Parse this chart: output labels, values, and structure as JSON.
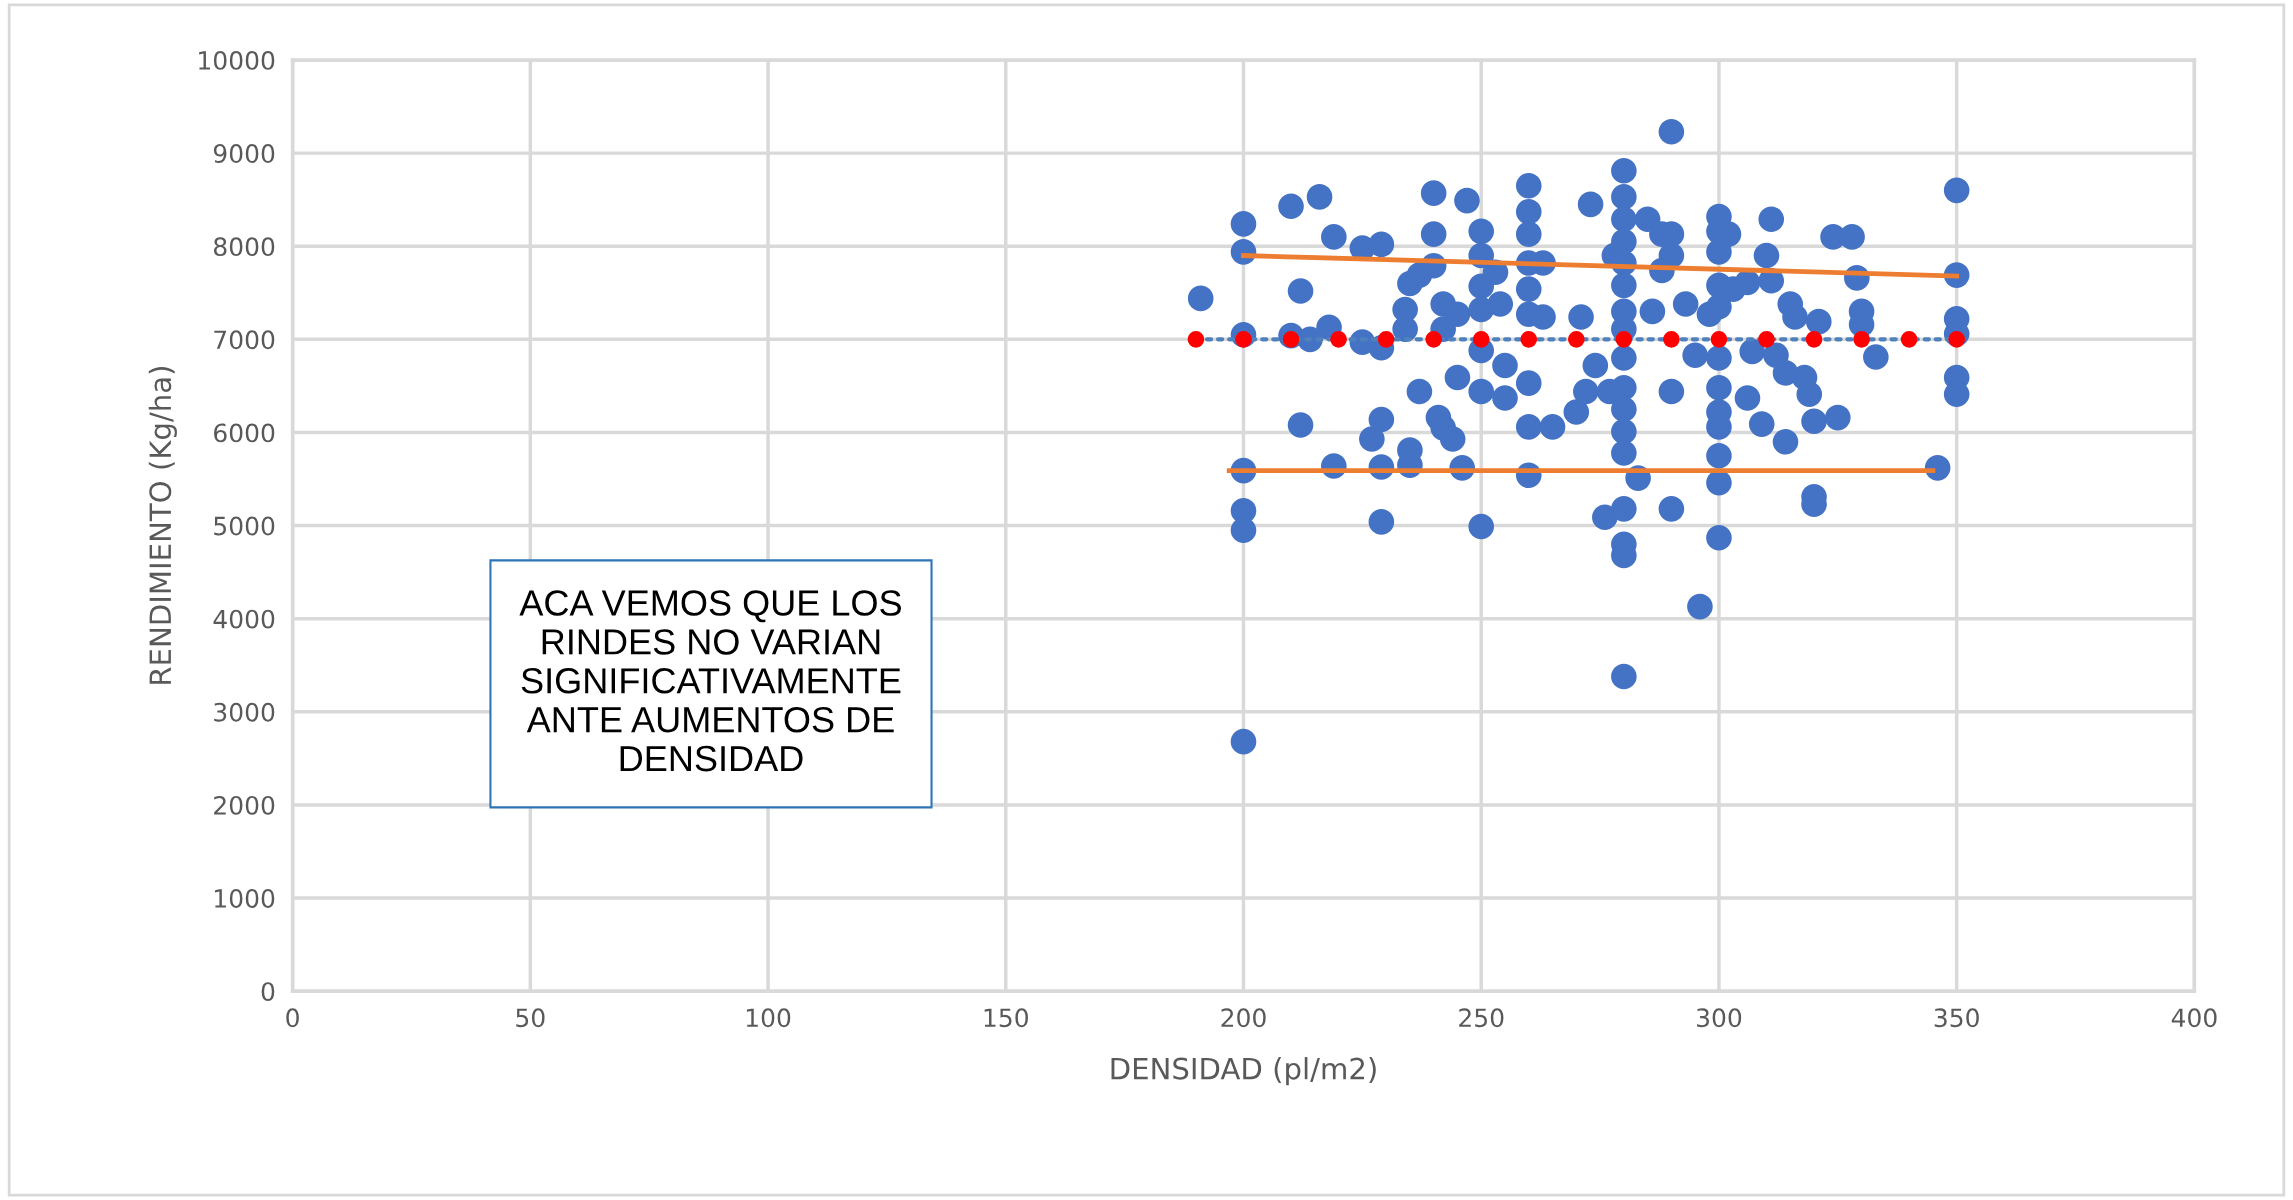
{
  "chart_data": {
    "type": "scatter",
    "xlabel": "DENSIDAD (pl/m2)",
    "ylabel": "RENDIMIENTO (Kg/ha)",
    "annotations": [
      "ACA VEMOS QUE LOS\nRINDES NO VARIAN\nSIGNIFICATIVAMENTE\nANTE AUMENTOS DE\nDENSIDAD"
    ],
    "xlim": [
      0,
      400
    ],
    "xticks": [
      0,
      50,
      100,
      150,
      200,
      250,
      300,
      350,
      400
    ],
    "ylim": [
      0,
      10000
    ],
    "yticks": [
      0,
      1000,
      2000,
      3000,
      4000,
      5000,
      6000,
      7000,
      8000,
      9000,
      10000
    ],
    "grid": true,
    "legend": false,
    "series": [
      {
        "color": "#4472c4",
        "marker": "circle",
        "x": [
          191,
          200,
          200,
          200,
          200,
          200,
          200,
          200,
          210,
          210,
          212,
          212,
          216,
          214,
          219,
          218,
          219,
          225,
          229,
          225,
          229,
          229,
          227,
          229,
          229,
          234,
          234,
          235,
          237,
          237,
          235,
          235,
          240,
          240,
          240,
          242,
          242,
          241,
          242,
          244,
          245,
          245,
          247,
          246,
          250,
          250,
          250,
          250,
          250,
          250,
          250,
          253,
          254,
          255,
          255,
          260,
          260,
          260,
          260,
          260,
          260,
          260,
          260,
          260,
          263,
          263,
          265,
          270,
          271,
          272,
          273,
          274,
          276,
          277,
          278,
          280,
          280,
          280,
          280,
          280,
          280,
          280,
          280,
          280,
          280,
          280,
          280,
          280,
          280,
          280,
          280,
          280,
          283,
          285,
          288,
          286,
          288,
          290,
          290,
          290,
          290,
          290,
          293,
          296,
          295,
          298,
          300,
          300,
          300,
          300,
          300,
          300,
          300,
          300,
          300,
          300,
          300,
          300,
          302,
          303,
          306,
          306,
          307,
          309,
          310,
          311,
          311,
          312,
          314,
          314,
          315,
          316,
          318,
          319,
          320,
          320,
          320,
          321,
          324,
          325,
          328,
          329,
          330,
          330,
          333,
          346,
          350,
          350,
          350,
          350,
          350,
          350
        ],
        "values": [
          7440,
          8240,
          7940,
          7050,
          5590,
          5160,
          4950,
          2680,
          8430,
          7040,
          7520,
          6080,
          8530,
          7000,
          8100,
          7130,
          5640,
          7980,
          8020,
          6970,
          6910,
          6140,
          5930,
          5630,
          5040,
          7320,
          7110,
          7600,
          7690,
          6440,
          5810,
          5650,
          8570,
          8130,
          7790,
          7380,
          7110,
          6160,
          6050,
          5930,
          6590,
          7270,
          8490,
          5620,
          8160,
          7900,
          7570,
          7320,
          6880,
          6440,
          4990,
          7720,
          7380,
          6370,
          6720,
          8650,
          8370,
          8130,
          7820,
          7540,
          7270,
          6530,
          6060,
          5540,
          7820,
          7240,
          6060,
          6220,
          7240,
          6440,
          8450,
          6720,
          5090,
          6440,
          7900,
          8810,
          8530,
          8290,
          8050,
          7820,
          7580,
          7300,
          7110,
          6800,
          6480,
          6250,
          6010,
          5780,
          5180,
          4800,
          4680,
          3380,
          5510,
          8290,
          8130,
          7300,
          7740,
          9230,
          8130,
          7900,
          6440,
          5180,
          7380,
          4130,
          6830,
          7270,
          8320,
          8160,
          7940,
          7580,
          7350,
          6800,
          6480,
          6220,
          6060,
          5750,
          5460,
          4870,
          8130,
          7540,
          7610,
          6370,
          6870,
          6090,
          7900,
          8290,
          7630,
          6830,
          6640,
          5900,
          7380,
          7240,
          6590,
          6410,
          6120,
          5310,
          5230,
          7190,
          8100,
          6160,
          8100,
          7660,
          7300,
          7160,
          6810,
          5620,
          8600,
          7690,
          7220,
          7060,
          6590,
          6410
        ]
      },
      {
        "type": "line",
        "color": "#ed7d31",
        "marker": "none",
        "line_style": "solid",
        "x": [
          200,
          350
        ],
        "values": [
          7900,
          7680
        ]
      },
      {
        "type": "line",
        "color": "#ed7d31",
        "marker": "none",
        "line_style": "solid",
        "x": [
          197,
          345
        ],
        "values": [
          5590,
          5590
        ]
      },
      {
        "type": "line",
        "color": "#ff0000",
        "marker": "circle",
        "line_style": "dotted",
        "x": [
          190,
          200,
          210,
          220,
          230,
          240,
          250,
          260,
          270,
          280,
          290,
          300,
          310,
          320,
          330,
          340,
          350
        ],
        "values": [
          7000,
          7000,
          7000,
          7000,
          7000,
          7000,
          7000,
          7000,
          7000,
          7000,
          7000,
          7000,
          7000,
          7000,
          7000,
          7000,
          7000
        ]
      }
    ]
  }
}
